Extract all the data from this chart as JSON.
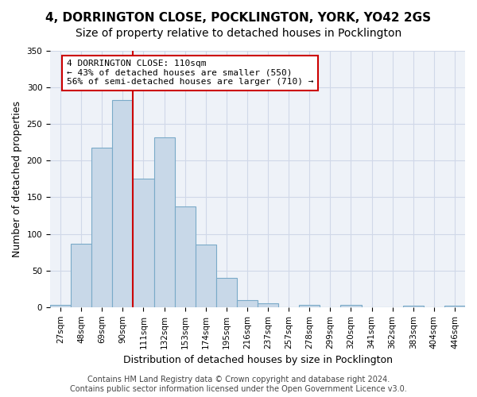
{
  "title1": "4, DORRINGTON CLOSE, POCKLINGTON, YORK, YO42 2GS",
  "title2": "Size of property relative to detached houses in Pocklington",
  "xlabel": "Distribution of detached houses by size in Pocklington",
  "ylabel": "Number of detached properties",
  "bar_values": [
    3,
    86,
    218,
    283,
    175,
    232,
    138,
    85,
    40,
    10,
    5,
    0,
    3,
    0,
    3,
    0,
    0,
    2,
    0,
    2
  ],
  "bar_labels": [
    "27sqm",
    "48sqm",
    "69sqm",
    "90sqm",
    "111sqm",
    "132sqm",
    "153sqm",
    "174sqm",
    "195sqm",
    "216sqm",
    "237sqm",
    "257sqm",
    "278sqm",
    "299sqm",
    "320sqm",
    "341sqm",
    "362sqm",
    "383sqm",
    "404sqm",
    "446sqm"
  ],
  "bar_color": "#c8d8e8",
  "bar_edge_color": "#7aaac8",
  "bar_edge_width": 0.8,
  "vline_x": 3.5,
  "vline_color": "#cc0000",
  "annotation_text": "4 DORRINGTON CLOSE: 110sqm\n← 43% of detached houses are smaller (550)\n56% of semi-detached houses are larger (710) →",
  "annotation_box_color": "#ffffff",
  "annotation_box_edge_color": "#cc0000",
  "ylim": [
    0,
    350
  ],
  "yticks": [
    0,
    50,
    100,
    150,
    200,
    250,
    300,
    350
  ],
  "grid_color": "#d0d8e8",
  "bg_color": "#eef2f8",
  "footer_line1": "Contains HM Land Registry data © Crown copyright and database right 2024.",
  "footer_line2": "Contains public sector information licensed under the Open Government Licence v3.0.",
  "title1_fontsize": 11,
  "title2_fontsize": 10,
  "xlabel_fontsize": 9,
  "ylabel_fontsize": 9,
  "tick_fontsize": 7.5,
  "annotation_fontsize": 8,
  "footer_fontsize": 7
}
